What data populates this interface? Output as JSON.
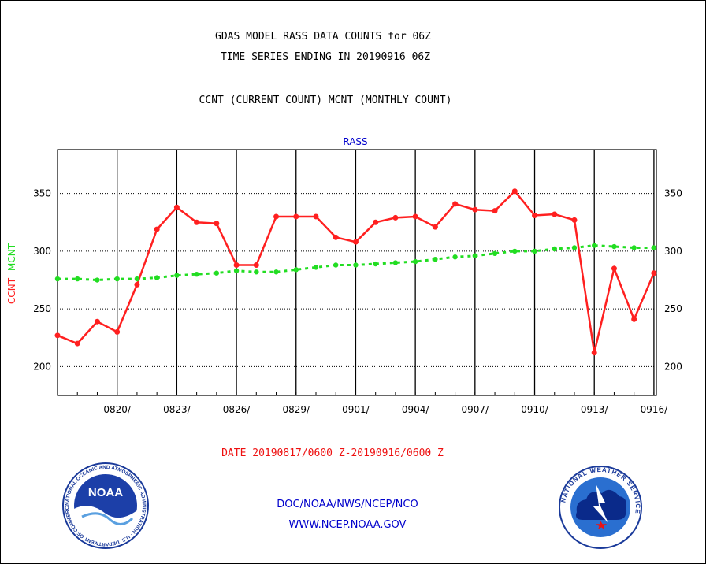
{
  "header": {
    "line1": "GDAS MODEL RASS DATA COUNTS for 06Z",
    "line2": "TIME SERIES ENDING IN 20190916 06Z",
    "line3": "CCNT (CURRENT COUNT) MCNT (MONTHLY COUNT)"
  },
  "chart_data": {
    "type": "line",
    "title": "RASS",
    "ylabel_ccnt": "CCNT",
    "ylabel_mcnt": "MCNT",
    "xlabel": "DATE 20190817/0600 Z-20190916/0600 Z",
    "ylim": [
      175,
      388
    ],
    "yticks": [
      200,
      250,
      300,
      350
    ],
    "ytick_labels": [
      "200",
      "250",
      "300",
      "350"
    ],
    "xticks": [
      "0820/",
      "0823/",
      "0826/",
      "0829/",
      "0901/",
      "0904/",
      "0907/",
      "0910/",
      "0913/",
      "0916/"
    ],
    "x": [
      "0817",
      "0818",
      "0819",
      "0820",
      "0821",
      "0822",
      "0823",
      "0824",
      "0825",
      "0826",
      "0827",
      "0828",
      "0829",
      "0830",
      "0831",
      "0901",
      "0902",
      "0903",
      "0904",
      "0905",
      "0906",
      "0907",
      "0908",
      "0909",
      "0910",
      "0911",
      "0912",
      "0913",
      "0914",
      "0915",
      "0916"
    ],
    "series": [
      {
        "name": "CCNT",
        "color": "#ff2020",
        "values": [
          227,
          220,
          239,
          230,
          271,
          319,
          338,
          325,
          324,
          288,
          288,
          330,
          330,
          330,
          312,
          308,
          325,
          329,
          330,
          321,
          341,
          336,
          335,
          352,
          331,
          332,
          327,
          212,
          285,
          241,
          281
        ]
      },
      {
        "name": "MCNT",
        "color": "#22dd22",
        "values": [
          276,
          276,
          275,
          276,
          276,
          277,
          279,
          280,
          281,
          283,
          282,
          282,
          284,
          286,
          288,
          288,
          289,
          290,
          291,
          293,
          295,
          296,
          298,
          300,
          300,
          302,
          303,
          305,
          304,
          303,
          303
        ]
      }
    ],
    "grid": true
  },
  "footer": {
    "line1": "DOC/NOAA/NWS/NCEP/NCO",
    "line2": "WWW.NCEP.NOAA.GOV",
    "noaa_logo_text": "NOAA",
    "noaa_ring_text": "NATIONAL OCEANIC AND ATMOSPHERIC ADMINISTRATION · U.S. DEPARTMENT OF COMMERCE ·",
    "nws_ring_text": "NATIONAL WEATHER SERVICE"
  },
  "colors": {
    "ccnt": "#ff2020",
    "mcnt": "#22dd22",
    "title_blue": "#0000cc",
    "xlabel_red": "#ee1111"
  }
}
